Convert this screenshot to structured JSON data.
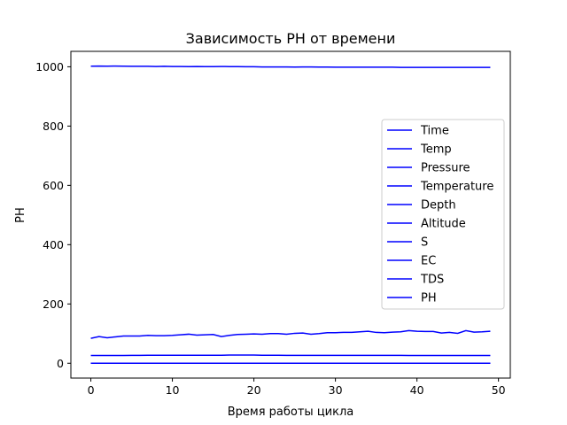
{
  "chart_data": {
    "type": "line",
    "title": "Зависимость PH от времени",
    "xlabel": "Время работы цикла",
    "ylabel": "PH",
    "xlim": [
      -2.45,
      51.45
    ],
    "ylim": [
      -50,
      1052
    ],
    "xticks": [
      0,
      10,
      20,
      30,
      40,
      50
    ],
    "yticks": [
      0,
      200,
      400,
      600,
      800,
      1000
    ],
    "xtick_labels": [
      "0",
      "10",
      "20",
      "30",
      "40",
      "50"
    ],
    "ytick_labels": [
      "0",
      "200",
      "400",
      "600",
      "800",
      "1000"
    ],
    "grid": false,
    "legend_position": "center-right",
    "line_color": "#0000ff",
    "series": [
      {
        "name": "Time",
        "values": [
          0,
          0,
          0,
          0,
          0,
          0,
          0,
          0,
          0,
          0,
          0,
          0,
          0,
          0,
          0,
          0,
          0,
          0,
          0,
          0,
          0,
          0,
          0,
          0,
          0,
          0,
          0,
          0,
          0,
          0,
          0,
          0,
          0,
          0,
          0,
          0,
          0,
          0,
          0,
          0,
          0,
          0,
          0,
          0,
          0,
          0,
          0,
          0,
          0,
          0
        ]
      },
      {
        "name": "Temp",
        "values": [
          26,
          26,
          26,
          26,
          26,
          26.5,
          26.5,
          27,
          27,
          27,
          27,
          27,
          27,
          27,
          27,
          27,
          27,
          27.5,
          27.5,
          27.5,
          27.5,
          27,
          27,
          27,
          26.5,
          26.5,
          26.5,
          26.5,
          26.5,
          26.5,
          26.5,
          26.5,
          26.5,
          26.5,
          26.5,
          26.5,
          26.5,
          26.5,
          26.5,
          26,
          26,
          26,
          26,
          26,
          26,
          26,
          26,
          26,
          26,
          26
        ]
      },
      {
        "name": "Pressure",
        "values": [
          1002,
          1002.5,
          1002,
          1002.5,
          1002,
          1001.5,
          1001.5,
          1001.5,
          1001,
          1001.5,
          1001,
          1001,
          1000.5,
          1001,
          1000.5,
          1000.5,
          1001,
          1000.5,
          1000.5,
          1000,
          1000,
          999.5,
          999.5,
          999.5,
          999.5,
          999,
          999.5,
          999.5,
          999,
          999,
          998.5,
          998.5,
          998.5,
          998.5,
          998.5,
          998.5,
          998.5,
          998.5,
          998,
          998,
          998,
          998,
          998,
          998,
          998,
          998,
          998,
          998,
          998,
          998
        ]
      },
      {
        "name": "Temperature",
        "values": [
          0,
          0,
          0,
          0,
          0,
          0,
          0,
          0,
          0,
          0,
          0,
          0,
          0,
          0,
          0,
          0,
          0,
          0,
          0,
          0,
          0,
          0,
          0,
          0,
          0,
          0,
          0,
          0,
          0,
          0,
          0,
          0,
          0,
          0,
          0,
          0,
          0,
          0,
          0,
          0,
          0,
          0,
          0,
          0,
          0,
          0,
          0,
          0,
          0,
          0
        ]
      },
      {
        "name": "Depth",
        "values": [
          0,
          0,
          0,
          0,
          0,
          0,
          0,
          0,
          0,
          0,
          0,
          0,
          0,
          0,
          0,
          0,
          0,
          0,
          0,
          0,
          0,
          0,
          0,
          0,
          0,
          0,
          0,
          0,
          0,
          0,
          0,
          0,
          0,
          0,
          0,
          0,
          0,
          0,
          0,
          0,
          0,
          0,
          0,
          0,
          0,
          0,
          0,
          0,
          0,
          0
        ]
      },
      {
        "name": "Altitude",
        "values": [
          0,
          0,
          0,
          0,
          0,
          0,
          0,
          0,
          0,
          0,
          0,
          0,
          0,
          0,
          0,
          0,
          0,
          0,
          0,
          0,
          0,
          0,
          0,
          0,
          0,
          0,
          0,
          0,
          0,
          0,
          0,
          0,
          0,
          0,
          0,
          0,
          0,
          0,
          0,
          0,
          0,
          0,
          0,
          0,
          0,
          0,
          0,
          0,
          0,
          0
        ]
      },
      {
        "name": "S",
        "values": [
          0,
          0,
          0,
          0,
          0,
          0,
          0,
          0,
          0,
          0,
          0,
          0,
          0,
          0,
          0,
          0,
          0,
          0,
          0,
          0,
          0,
          0,
          0,
          0,
          0,
          0,
          0,
          0,
          0,
          0,
          0,
          0,
          0,
          0,
          0,
          0,
          0,
          0,
          0,
          0,
          0,
          0,
          0,
          0,
          0,
          0,
          0,
          0,
          0,
          0
        ]
      },
      {
        "name": "EC",
        "values": [
          0,
          0,
          0,
          0,
          0,
          0,
          0,
          0,
          0,
          0,
          0,
          0,
          0,
          0,
          0,
          0,
          0,
          0,
          0,
          0,
          0,
          0,
          0,
          0,
          0,
          0,
          0,
          0,
          0,
          0,
          0,
          0,
          0,
          0,
          0,
          0,
          0,
          0,
          0,
          0,
          0,
          0,
          0,
          0,
          0,
          0,
          0,
          0,
          0,
          0
        ]
      },
      {
        "name": "TDS",
        "values": [
          84,
          90,
          86,
          89,
          92,
          92,
          92,
          94,
          93,
          93,
          94,
          96,
          98,
          95,
          96,
          97,
          90,
          94,
          97,
          98,
          99,
          98,
          100,
          100,
          98,
          101,
          102,
          98,
          100,
          103,
          103,
          104,
          104,
          106,
          108,
          104,
          103,
          105,
          106,
          110,
          108,
          107,
          107,
          102,
          104,
          101,
          110,
          105,
          106,
          108
        ]
      },
      {
        "name": "PH",
        "values": [
          0,
          0,
          0,
          0,
          0,
          0,
          0,
          0,
          0,
          0,
          0,
          0,
          0,
          0,
          0,
          0,
          0,
          0,
          0,
          0,
          0,
          0,
          0,
          0,
          0,
          0,
          0,
          0,
          0,
          0,
          0,
          0,
          0,
          0,
          0,
          0,
          0,
          0,
          0,
          0,
          0,
          0,
          0,
          0,
          0,
          0,
          0,
          0,
          0,
          0
        ]
      }
    ]
  }
}
